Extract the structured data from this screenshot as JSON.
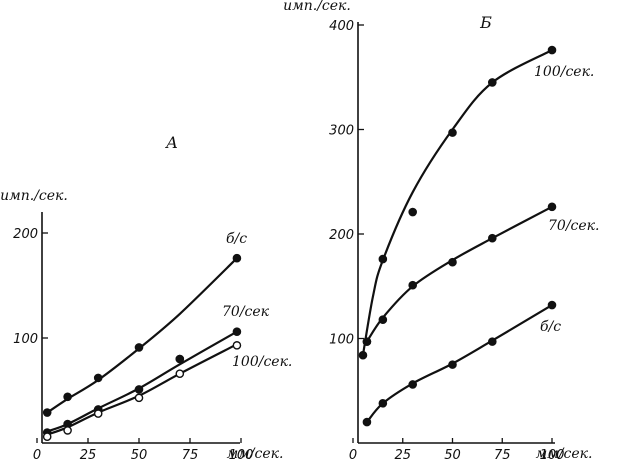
{
  "chart_data": [
    {
      "type": "line",
      "panel_label": "A",
      "ylabel": "имп./сек.",
      "xlabel": "мм/сек.",
      "xlim": [
        0,
        100
      ],
      "ylim": [
        0,
        210
      ],
      "xticks": [
        0,
        25,
        50,
        75,
        100
      ],
      "yticks": [
        100,
        200
      ],
      "series": [
        {
          "name": "б/с",
          "marker": "filled",
          "x": [
            5,
            15,
            30,
            50,
            70,
            98
          ],
          "y": [
            29,
            44,
            62,
            91,
            80,
            176
          ],
          "curve": [
            [
              5,
              29
            ],
            [
              15,
              42
            ],
            [
              30,
              60
            ],
            [
              50,
              90
            ],
            [
              70,
              123
            ],
            [
              98,
              176
            ]
          ]
        },
        {
          "name": "70/сек",
          "marker": "filled",
          "x": [
            5,
            15,
            30,
            50,
            70,
            98
          ],
          "y": [
            10,
            18,
            32,
            51,
            80,
            106
          ],
          "curve": [
            [
              5,
              11
            ],
            [
              15,
              18
            ],
            [
              30,
              33
            ],
            [
              50,
              52
            ],
            [
              70,
              75
            ],
            [
              98,
              106
            ]
          ]
        },
        {
          "name": "100/сек.",
          "marker": "open",
          "x": [
            5,
            15,
            30,
            50,
            70,
            98
          ],
          "y": [
            6,
            12,
            28,
            43,
            66,
            93
          ],
          "curve": [
            [
              5,
              8
            ],
            [
              15,
              15
            ],
            [
              30,
              29
            ],
            [
              50,
              45
            ],
            [
              70,
              66
            ],
            [
              98,
              94
            ]
          ]
        }
      ]
    },
    {
      "type": "line",
      "panel_label": "Б",
      "ylabel": "имп./сек.",
      "xlabel": "мм/сек.",
      "xlim": [
        0,
        100
      ],
      "ylim": [
        0,
        400
      ],
      "xticks": [
        0,
        25,
        50,
        75,
        100
      ],
      "yticks": [
        100,
        200,
        300,
        400
      ],
      "series": [
        {
          "name": "100/сек.",
          "marker": "filled",
          "x": [
            5,
            7,
            15,
            30,
            50,
            70,
            100
          ],
          "y": [
            84,
            97,
            176,
            221,
            297,
            345,
            376
          ],
          "curve": [
            [
              5,
              84
            ],
            [
              10,
              140
            ],
            [
              15,
              175
            ],
            [
              30,
              240
            ],
            [
              50,
              300
            ],
            [
              70,
              345
            ],
            [
              100,
              376
            ]
          ]
        },
        {
          "name": "70/сек.",
          "marker": "filled",
          "x": [
            7,
            15,
            30,
            50,
            70,
            100
          ],
          "y": [
            97,
            118,
            151,
            173,
            196,
            226
          ],
          "curve": [
            [
              7,
              97
            ],
            [
              15,
              120
            ],
            [
              30,
              150
            ],
            [
              50,
              175
            ],
            [
              70,
              196
            ],
            [
              100,
              226
            ]
          ]
        },
        {
          "name": "б/с",
          "marker": "filled",
          "x": [
            7,
            15,
            30,
            50,
            70,
            100
          ],
          "y": [
            20,
            38,
            56,
            75,
            97,
            132
          ],
          "curve": [
            [
              7,
              20
            ],
            [
              15,
              38
            ],
            [
              30,
              57
            ],
            [
              50,
              76
            ],
            [
              70,
              98
            ],
            [
              100,
              132
            ]
          ]
        }
      ]
    }
  ]
}
